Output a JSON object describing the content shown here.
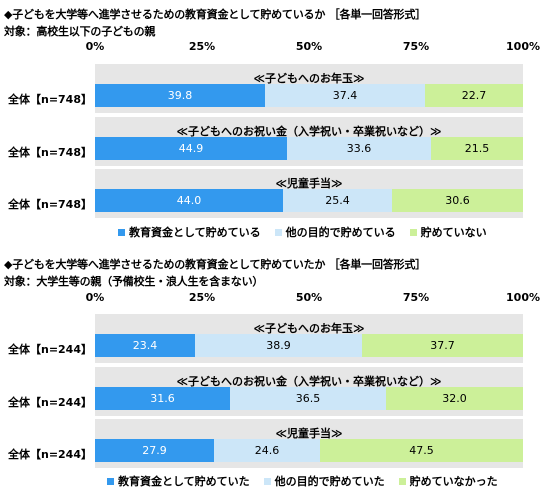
{
  "colors": {
    "s1": "#3399ee",
    "s2": "#cce6f8",
    "s3": "#ccf099",
    "panel": "#e6e6e6"
  },
  "ticks": [
    "0%",
    "25%",
    "50%",
    "75%",
    "100%"
  ],
  "chart_data": [
    {
      "type": "bar",
      "title": "◆子どもを大学等へ進学させるための教育資金として貯めているか ［各単一回答形式］",
      "subtitle": "対象：高校生以下の子どもの親",
      "xlim": [
        0,
        100
      ],
      "stacked": true,
      "orientation": "horizontal",
      "legend": [
        "教育資金として貯めている",
        "他の目的で貯めている",
        "貯めていない"
      ],
      "rows": [
        {
          "category": "≪子どもへのお年玉≫",
          "label": "全体【n=748】",
          "values": [
            "39.8",
            "37.4",
            "22.7"
          ]
        },
        {
          "category": "≪子どもへのお祝い金（入学祝い・卒業祝いなど）≫",
          "label": "全体【n=748】",
          "values": [
            "44.9",
            "33.6",
            "21.5"
          ]
        },
        {
          "category": "≪児童手当≫",
          "label": "全体【n=748】",
          "values": [
            "44.0",
            "25.4",
            "30.6"
          ]
        }
      ]
    },
    {
      "type": "bar",
      "title": "◆子どもを大学等へ進学させるための教育資金として貯めていたか ［各単一回答形式］",
      "subtitle": "対象：大学生等の親（予備校生・浪人生を含まない）",
      "xlim": [
        0,
        100
      ],
      "stacked": true,
      "orientation": "horizontal",
      "legend": [
        "教育資金として貯めていた",
        "他の目的で貯めていた",
        "貯めていなかった"
      ],
      "rows": [
        {
          "category": "≪子どもへのお年玉≫",
          "label": "全体【n=244】",
          "values": [
            "23.4",
            "38.9",
            "37.7"
          ]
        },
        {
          "category": "≪子どもへのお祝い金（入学祝い・卒業祝いなど）≫",
          "label": "全体【n=244】",
          "values": [
            "31.6",
            "36.5",
            "32.0"
          ]
        },
        {
          "category": "≪児童手当≫",
          "label": "全体【n=244】",
          "values": [
            "27.9",
            "24.6",
            "47.5"
          ]
        }
      ]
    }
  ]
}
